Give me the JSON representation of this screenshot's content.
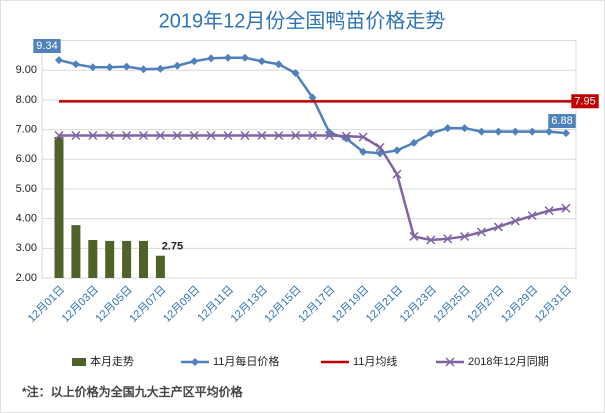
{
  "chart_data": {
    "type": "combo",
    "title": "2019年12月份全国鸭苗价格走势",
    "categories": [
      "12月01日",
      null,
      "12月03日",
      null,
      "12月05日",
      null,
      "12月07日",
      null,
      "12月09日",
      null,
      "12月11日",
      null,
      "12月13日",
      null,
      "12月15日",
      null,
      "12月17日",
      null,
      "12月19日",
      null,
      "12月21日",
      null,
      "12月23日",
      null,
      "12月25日",
      null,
      "12月27日",
      null,
      "12月29日",
      null,
      "12月31日"
    ],
    "ylim": [
      2,
      10
    ],
    "yticks": [
      {
        "value": 2,
        "label": "2.00"
      },
      {
        "value": 3,
        "label": "3.00"
      },
      {
        "value": 4,
        "label": "4.00"
      },
      {
        "value": 5,
        "label": "5.00"
      },
      {
        "value": 6,
        "label": "6.00"
      },
      {
        "value": 7,
        "label": "7.00"
      },
      {
        "value": 8,
        "label": "8.00"
      },
      {
        "value": 9,
        "label": "9.00"
      }
    ],
    "grid": true,
    "series": [
      {
        "name": "本月走势",
        "kind": "bar",
        "color": "#4f6228",
        "values": [
          6.75,
          3.78,
          3.28,
          3.25,
          3.25,
          3.25,
          2.75,
          null,
          null,
          null,
          null,
          null,
          null,
          null,
          null,
          null,
          null,
          null,
          null,
          null,
          null,
          null,
          null,
          null,
          null,
          null,
          null,
          null,
          null,
          null,
          null
        ],
        "labeled": [
          6
        ]
      },
      {
        "name": "11月每日价格",
        "kind": "line",
        "marker": "diamond",
        "color": "#4f81bd",
        "values": [
          9.34,
          9.2,
          9.1,
          9.1,
          9.12,
          9.03,
          9.05,
          9.15,
          9.3,
          9.4,
          9.42,
          9.42,
          9.3,
          9.2,
          8.9,
          8.08,
          6.9,
          6.7,
          6.25,
          6.2,
          6.3,
          6.55,
          6.87,
          7.05,
          7.05,
          6.93,
          6.93,
          6.93,
          6.93,
          6.93,
          6.88
        ],
        "labeled": [
          0,
          30
        ]
      },
      {
        "name": "11月均线",
        "kind": "hline",
        "color": "#c00000",
        "value": 7.95
      },
      {
        "name": "2018年12月同期",
        "kind": "line",
        "marker": "x",
        "color": "#8064a2",
        "values": [
          6.8,
          6.8,
          6.8,
          6.8,
          6.8,
          6.8,
          6.8,
          6.8,
          6.8,
          6.8,
          6.8,
          6.8,
          6.8,
          6.8,
          6.8,
          6.8,
          6.8,
          6.78,
          6.75,
          6.4,
          5.5,
          3.4,
          3.28,
          3.32,
          3.4,
          3.55,
          3.72,
          3.92,
          4.1,
          4.27,
          4.35
        ]
      }
    ],
    "note": "*注：以上价格为全国九大主产区平均价格"
  }
}
